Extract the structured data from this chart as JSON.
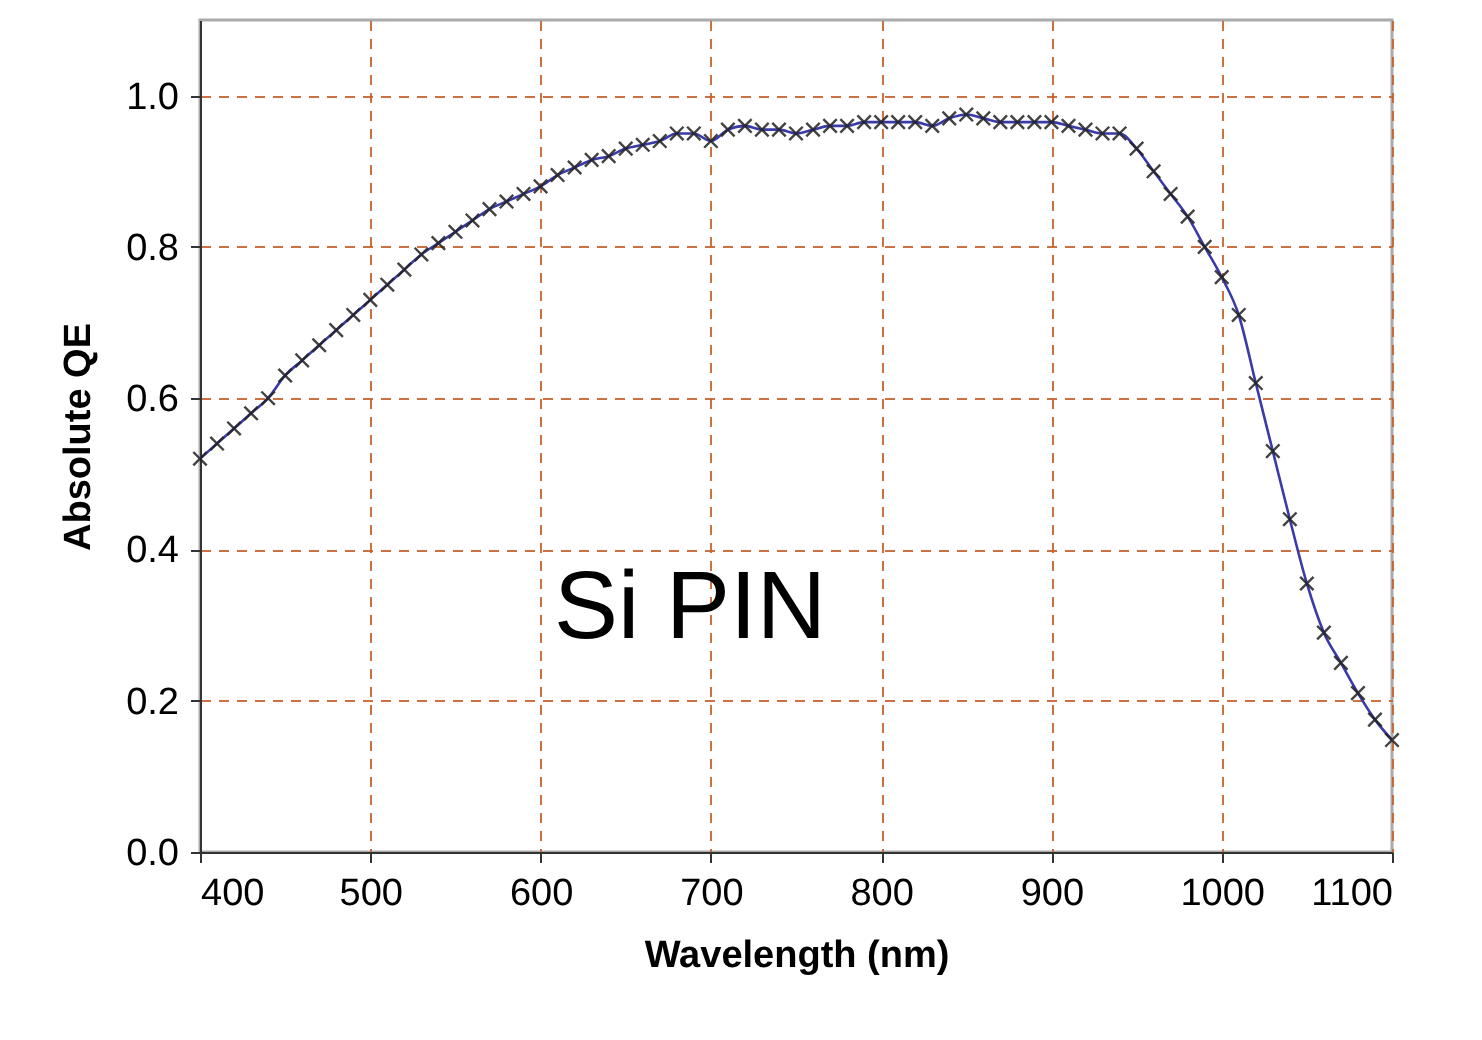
{
  "chart_data": {
    "type": "line",
    "xlabel": "Wavelength (nm)",
    "ylabel": "Absolute QE",
    "annotations": [
      "Si PIN"
    ],
    "x": [
      400,
      410,
      420,
      430,
      440,
      450,
      460,
      470,
      480,
      490,
      500,
      510,
      520,
      530,
      540,
      550,
      560,
      570,
      580,
      590,
      600,
      610,
      620,
      630,
      640,
      650,
      660,
      670,
      680,
      690,
      700,
      710,
      720,
      730,
      740,
      750,
      760,
      770,
      780,
      790,
      800,
      810,
      820,
      830,
      840,
      850,
      860,
      870,
      880,
      890,
      900,
      910,
      920,
      930,
      940,
      950,
      960,
      970,
      980,
      990,
      1000,
      1010,
      1020,
      1030,
      1040,
      1050,
      1060,
      1070,
      1080,
      1090,
      1100
    ],
    "series": [
      {
        "color": "#3a3aa8",
        "values": [
          0.52,
          0.54,
          0.56,
          0.58,
          0.6,
          0.63,
          0.65,
          0.67,
          0.69,
          0.71,
          0.73,
          0.75,
          0.77,
          0.79,
          0.805,
          0.82,
          0.835,
          0.85,
          0.86,
          0.87,
          0.88,
          0.895,
          0.905,
          0.915,
          0.92,
          0.93,
          0.935,
          0.94,
          0.95,
          0.95,
          0.94,
          0.955,
          0.96,
          0.955,
          0.955,
          0.95,
          0.955,
          0.96,
          0.96,
          0.965,
          0.965,
          0.965,
          0.965,
          0.96,
          0.97,
          0.975,
          0.97,
          0.965,
          0.965,
          0.965,
          0.965,
          0.96,
          0.955,
          0.95,
          0.95,
          0.93,
          0.9,
          0.87,
          0.84,
          0.8,
          0.76,
          0.71,
          0.62,
          0.53,
          0.44,
          0.355,
          0.29,
          0.25,
          0.21,
          0.175,
          0.148
        ]
      }
    ],
    "xlim": [
      400,
      1100
    ],
    "xticks": [
      400,
      500,
      600,
      700,
      800,
      900,
      1000,
      1100
    ],
    "ylim": [
      0,
      1.1
    ],
    "yticks": [
      {
        "value": 0,
        "label": "0.0"
      },
      {
        "value": 0.2,
        "label": "0.2"
      },
      {
        "value": 0.4,
        "label": "0.4"
      },
      {
        "value": 0.6,
        "label": "0.6"
      },
      {
        "value": 0.8,
        "label": "0.8"
      },
      {
        "value": 1.0,
        "label": "1.0"
      }
    ],
    "grid": true,
    "marker": "cross",
    "line_style": "solid"
  }
}
